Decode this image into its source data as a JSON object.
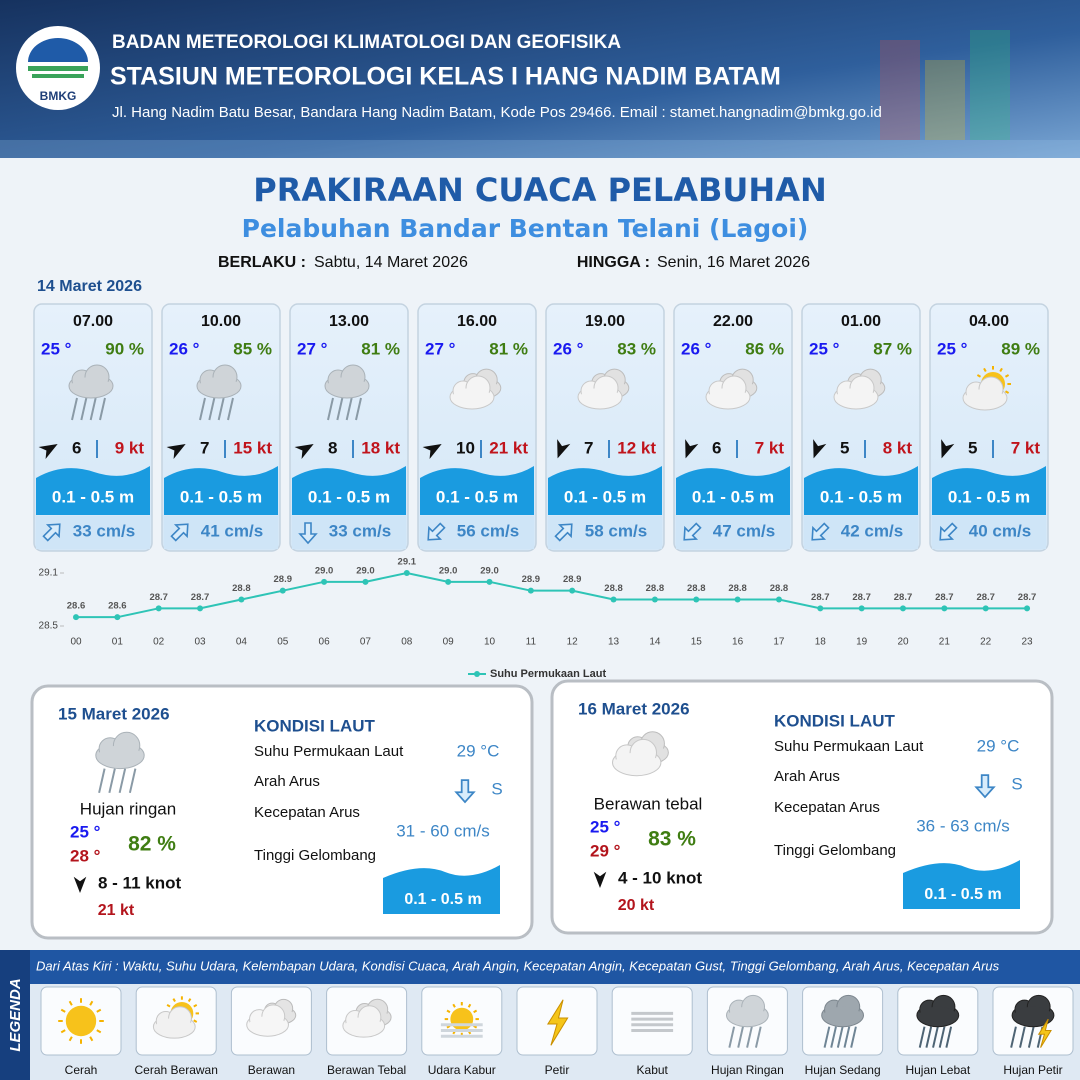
{
  "header": {
    "logo": "BMKG",
    "agency": "BADAN METEOROLOGI KLIMATOLOGI DAN GEOFISIKA",
    "station": "STASIUN METEOROLOGI KELAS I HANG NADIM BATAM",
    "address": "Jl. Hang Nadim Batu Besar, Bandara Hang Nadim Batam, Kode Pos 29466. Email : stamet.hangnadim@bmkg.go.id"
  },
  "title": "PRAKIRAAN CUACA PELABUHAN",
  "subtitle": "Pelabuhan Bandar Bentan Telani (Lagoi)",
  "validity": {
    "from_label": "BERLAKU :",
    "from": "Sabtu, 14 Maret 2026",
    "to_label": "HINGGA :",
    "to": "Senin, 16 Maret 2026"
  },
  "today": {
    "date": "14 Maret 2026",
    "forecasts": [
      {
        "time": "07.00",
        "temp": "25 °",
        "humidity": "90 %",
        "wind": "6",
        "gust": "9 kt",
        "wave": "0.1 - 0.5 m",
        "current": "33 cm/s"
      },
      {
        "time": "10.00",
        "temp": "26 °",
        "humidity": "85 %",
        "wind": "7",
        "gust": "15 kt",
        "wave": "0.1 - 0.5 m",
        "current": "41 cm/s"
      },
      {
        "time": "13.00",
        "temp": "27 °",
        "humidity": "81 %",
        "wind": "8",
        "gust": "18 kt",
        "wave": "0.1 - 0.5 m",
        "current": "33 cm/s"
      },
      {
        "time": "16.00",
        "temp": "27 °",
        "humidity": "81 %",
        "wind": "10",
        "gust": "21 kt",
        "wave": "0.1 - 0.5 m",
        "current": "56 cm/s"
      },
      {
        "time": "19.00",
        "temp": "26 °",
        "humidity": "83 %",
        "wind": "7",
        "gust": "12 kt",
        "wave": "0.1 - 0.5 m",
        "current": "58 cm/s"
      },
      {
        "time": "22.00",
        "temp": "26 °",
        "humidity": "86 %",
        "wind": "6",
        "gust": "7 kt",
        "wave": "0.1 - 0.5 m",
        "current": "47 cm/s"
      },
      {
        "time": "01.00",
        "temp": "25 °",
        "humidity": "87 %",
        "wind": "5",
        "gust": "8 kt",
        "wave": "0.1 - 0.5 m",
        "current": "42 cm/s"
      },
      {
        "time": "04.00",
        "temp": "25 °",
        "humidity": "89 %",
        "wind": "5",
        "gust": "7 kt",
        "wave": "0.1 - 0.5 m",
        "current": "40 cm/s"
      }
    ]
  },
  "chart_data": {
    "type": "line",
    "categories": [
      "00",
      "01",
      "02",
      "03",
      "04",
      "05",
      "06",
      "07",
      "08",
      "09",
      "10",
      "11",
      "12",
      "13",
      "14",
      "15",
      "16",
      "17",
      "18",
      "19",
      "20",
      "21",
      "22",
      "23"
    ],
    "series": [
      {
        "name": "Suhu Permukaan Laut",
        "color": "#2ec4b6",
        "values": [
          28.6,
          28.6,
          28.7,
          28.7,
          28.8,
          28.9,
          29.0,
          29.0,
          29.1,
          29.0,
          29.0,
          28.9,
          28.9,
          28.8,
          28.8,
          28.8,
          28.8,
          28.8,
          28.7,
          28.7,
          28.7,
          28.7,
          28.7,
          28.7
        ],
        "value_labels": [
          "28.6",
          "28.6",
          "28.7",
          "28.7",
          "28.8",
          "28.9",
          "29.0",
          "29.0",
          "29.1",
          "29.0",
          "29.0",
          "28.9",
          "28.9",
          "28.8",
          "28.8",
          "28.8",
          "28.8",
          "28.8",
          "28.7",
          "28.7",
          "28.7",
          "28.7",
          "28.7",
          "28.7"
        ]
      }
    ],
    "ylim": [
      28.5,
      29.1
    ],
    "yticks": [
      28.5,
      29.1
    ]
  },
  "days": [
    {
      "date": "15 Maret 2026",
      "condition": "Hujan ringan",
      "temp_min": "25 °",
      "temp_max": "28 °",
      "humidity": "82 %",
      "wind": "8  - 11 knot",
      "gust": "21 kt",
      "sea": {
        "heading": "KONDISI LAUT",
        "sst_label": "Suhu Permukaan Laut",
        "sst": "29 °C",
        "dir_label": "Arah Arus",
        "dir": "S",
        "speed_label": "Kecepatan Arus",
        "speed": "31  - 60 cm/s",
        "wave_label": "Tinggi Gelombang",
        "wave": "0.1 - 0.5 m"
      }
    },
    {
      "date": "16 Maret 2026",
      "condition": "Berawan tebal",
      "temp_min": "25 °",
      "temp_max": "29 °",
      "humidity": "83 %",
      "wind": "4  - 10 knot",
      "gust": "20 kt",
      "sea": {
        "heading": "KONDISI LAUT",
        "sst_label": "Suhu Permukaan Laut",
        "sst": "29 °C",
        "dir_label": "Arah Arus",
        "dir": "S",
        "speed_label": "Kecepatan Arus",
        "speed": "36 - 63 cm/s",
        "wave_label": "Tinggi Gelombang",
        "wave": "0.1 - 0.5 m"
      }
    }
  ],
  "legend": {
    "title": "LEGENDA",
    "description": "Dari Atas Kiri : Waktu, Suhu Udara, Kelembapan Udara, Kondisi Cuaca, Arah Angin, Kecepatan Angin, Kecepatan Gust, Tinggi Gelombang, Arah Arus, Kecepatan Arus",
    "items": [
      "Cerah",
      "Cerah Berawan",
      "Berawan",
      "Berawan Tebal",
      "Udara Kabur",
      "Petir",
      "Kabut",
      "Hujan Ringan",
      "Hujan Sedang",
      "Hujan Lebat",
      "Hujan Petir"
    ]
  }
}
